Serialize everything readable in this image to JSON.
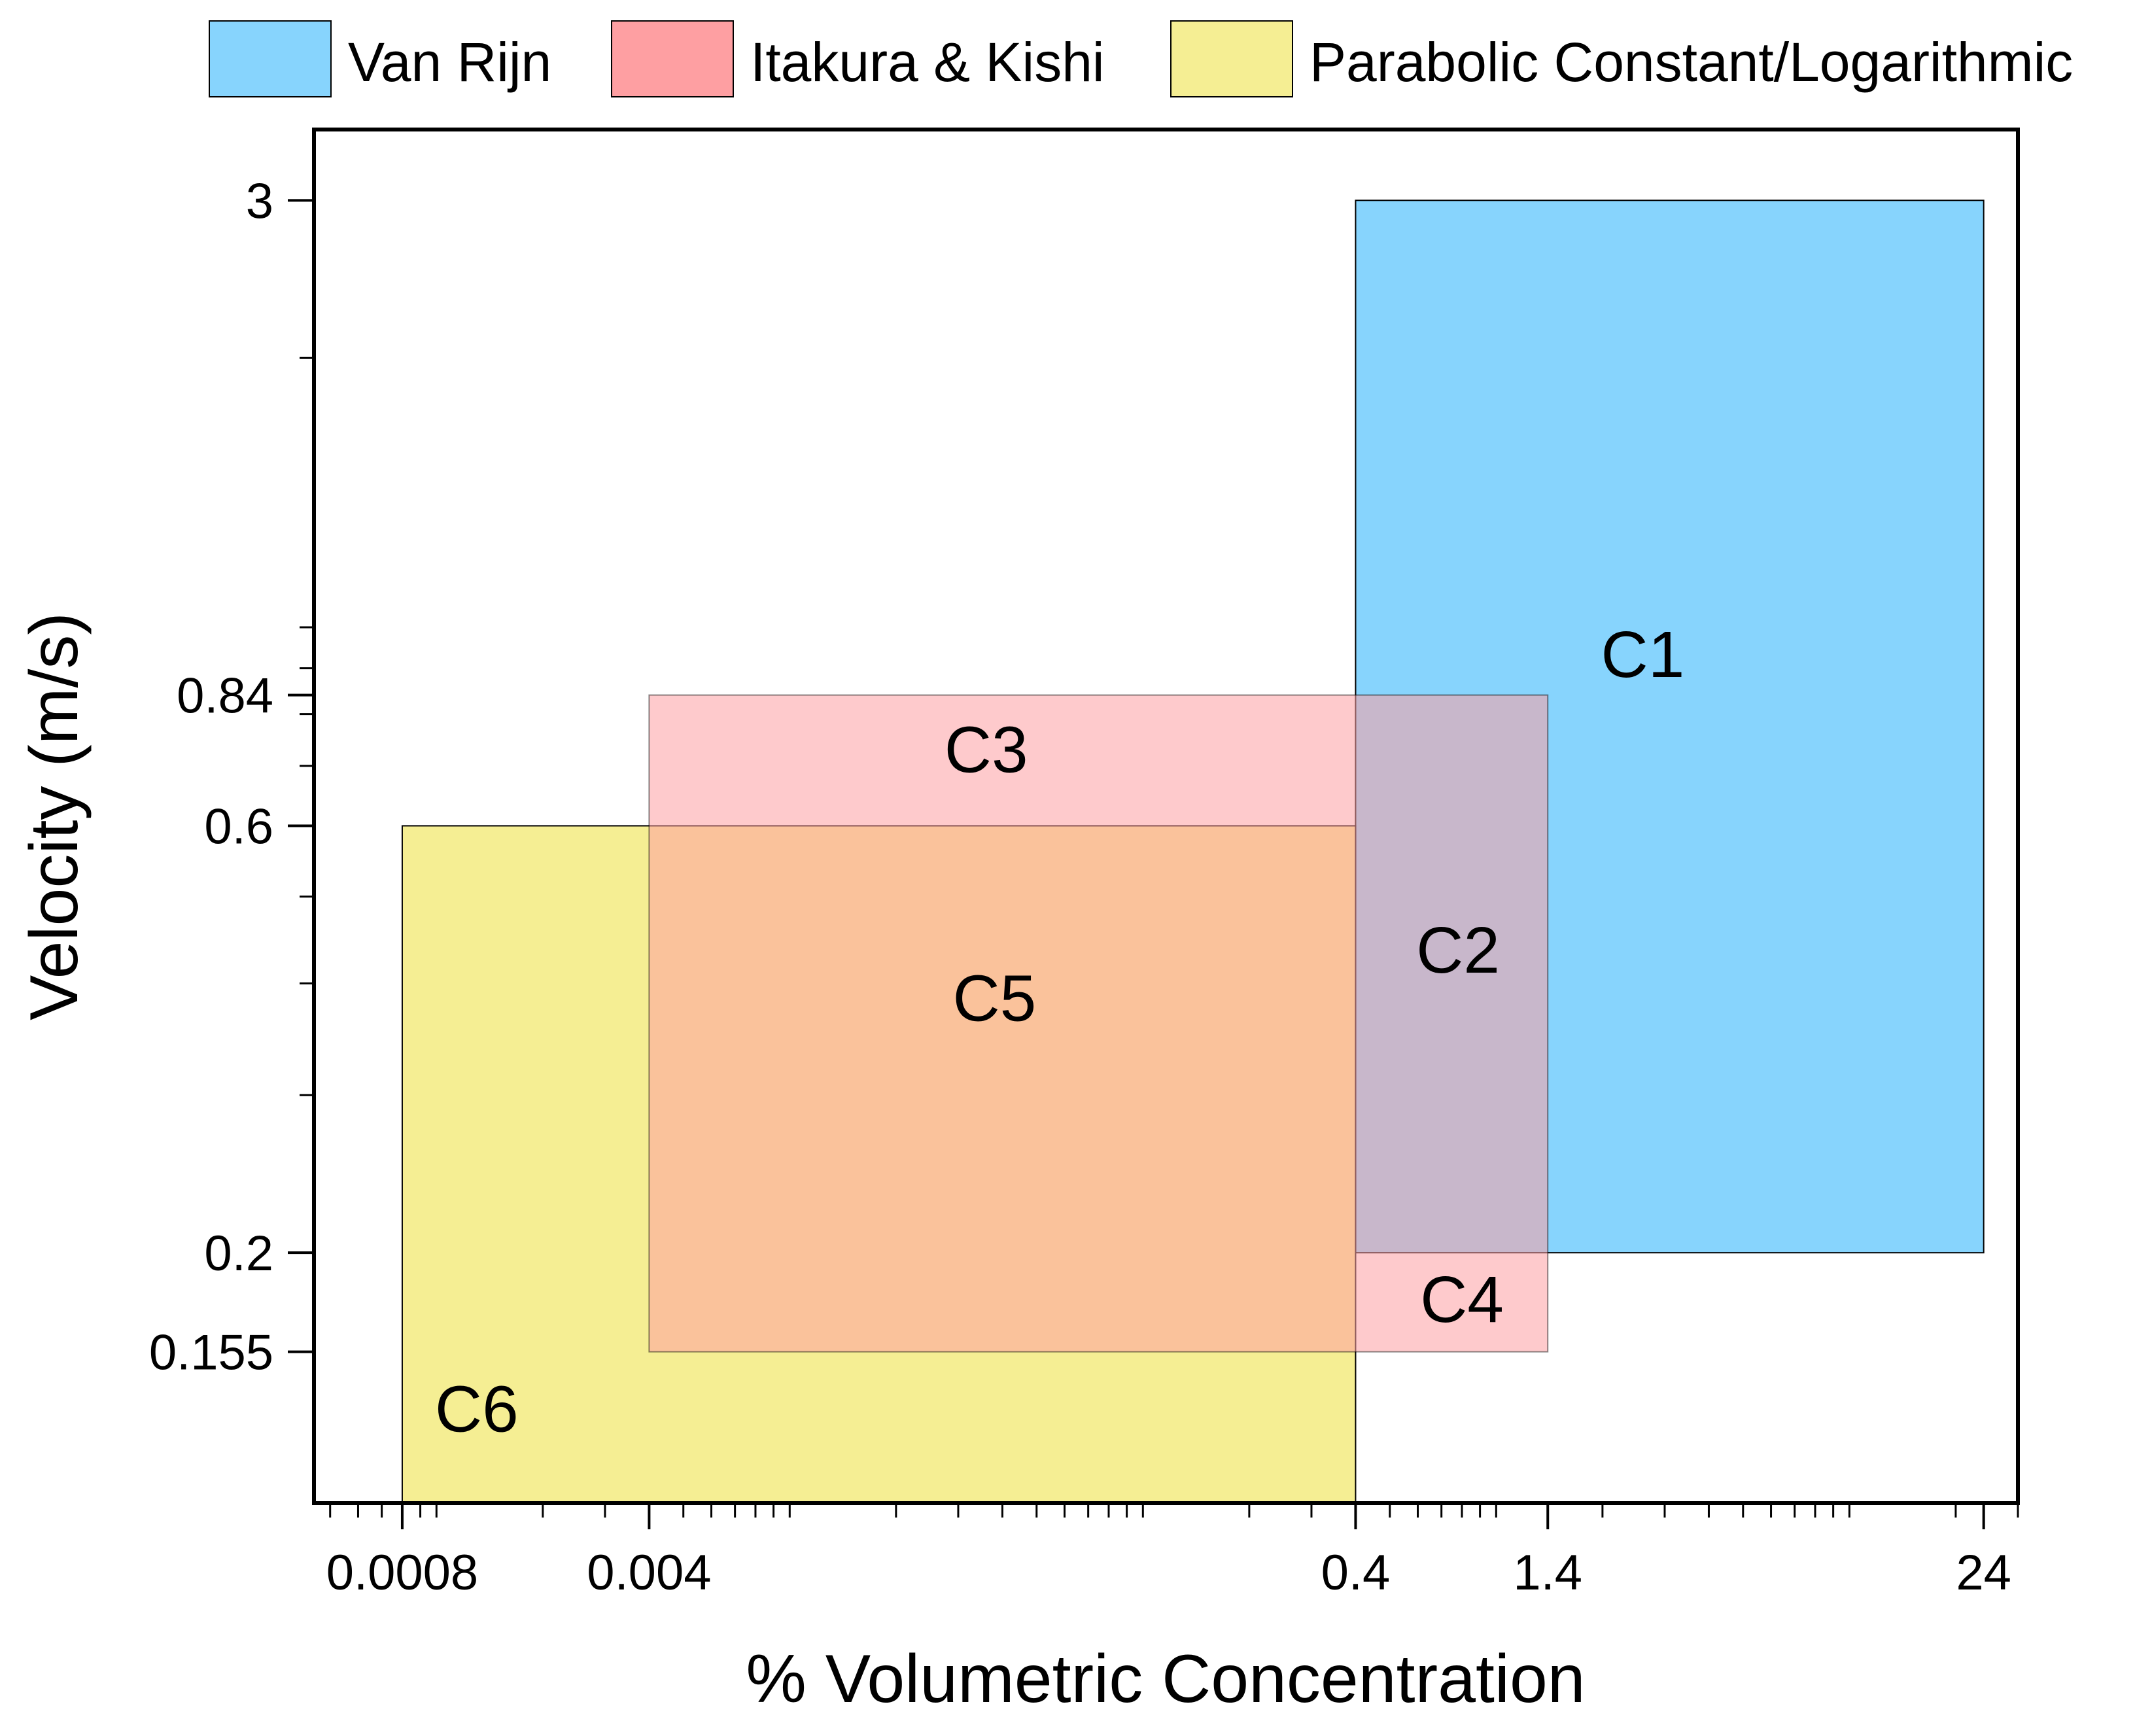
{
  "chart_data": {
    "type": "area",
    "title": "",
    "xlabel": "% Volumetric Concentration",
    "ylabel": "Velocity (m/s)",
    "xscale": "log",
    "yscale": "log",
    "xlim": [
      0.00045,
      30
    ],
    "ylim": [
      0.105,
      3.6
    ],
    "xticks": [
      {
        "value": 0.0008,
        "label": "0.0008"
      },
      {
        "value": 0.004,
        "label": "0.004"
      },
      {
        "value": 0.4,
        "label": "0.4"
      },
      {
        "value": 1.4,
        "label": "1.4"
      },
      {
        "value": 24,
        "label": "24"
      }
    ],
    "yticks": [
      {
        "value": 0.155,
        "label": "0.155"
      },
      {
        "value": 0.2,
        "label": "0.2"
      },
      {
        "value": 0.6,
        "label": "0.6"
      },
      {
        "value": 0.84,
        "label": "0.84"
      },
      {
        "value": 3,
        "label": "3"
      }
    ],
    "legend_position": "top",
    "series": [
      {
        "name": "Van Rijn",
        "color": "#87D4FD",
        "x_range": [
          0.4,
          24
        ],
        "y_range": [
          0.2,
          3
        ],
        "opacity": 1
      },
      {
        "name": "Itakura & Kishi",
        "color": "#FE9FA2",
        "x_range": [
          0.004,
          1.4
        ],
        "y_range": [
          0.155,
          0.84
        ],
        "opacity": 0.55
      },
      {
        "name": "Parabolic Constant/Logarithmic",
        "color": "#F5EE93",
        "x_range": [
          0.0008,
          0.4
        ],
        "y_range": [
          0.105,
          0.6
        ],
        "opacity": 1
      }
    ],
    "region_labels": [
      {
        "text": "C1",
        "x": 2.6,
        "y": 0.92
      },
      {
        "text": "C2",
        "x": 0.78,
        "y": 0.43
      },
      {
        "text": "C3",
        "x": 0.036,
        "y": 0.72
      },
      {
        "text": "C4",
        "x": 0.8,
        "y": 0.175
      },
      {
        "text": "C5",
        "x": 0.038,
        "y": 0.38
      },
      {
        "text": "C6",
        "x": 0.0013,
        "y": 0.132
      }
    ]
  }
}
